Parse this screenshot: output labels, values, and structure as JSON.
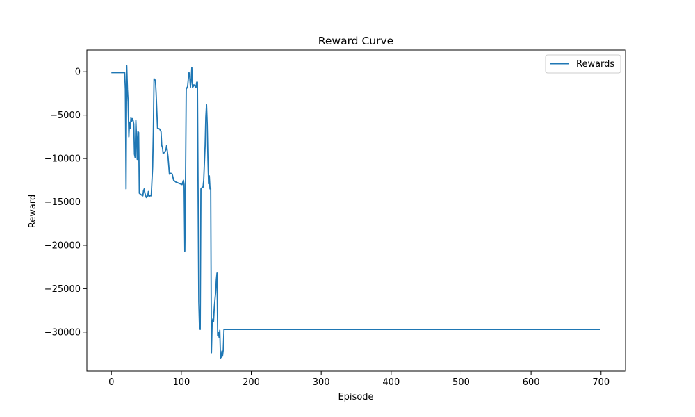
{
  "chart_data": {
    "type": "line",
    "title": "Reward Curve",
    "xlabel": "Episode",
    "ylabel": "Reward",
    "xlim": [
      -35,
      735
    ],
    "ylim": [
      -34500,
      2500
    ],
    "xticks": [
      0,
      100,
      200,
      300,
      400,
      500,
      600,
      700
    ],
    "yticks": [
      0,
      -5000,
      -10000,
      -15000,
      -20000,
      -25000,
      -30000
    ],
    "ytick_labels": [
      "0",
      "−5000",
      "−10000",
      "−15000",
      "−20000",
      "−25000",
      "−30000"
    ],
    "grid": false,
    "legend_position": "top-right",
    "line_color": "#1f77b4",
    "series": [
      {
        "name": "Rewards",
        "points": [
          [
            0,
            -100
          ],
          [
            19,
            -100
          ],
          [
            20,
            -2000
          ],
          [
            21,
            -13500
          ],
          [
            22,
            700
          ],
          [
            23,
            -2000
          ],
          [
            24,
            -3500
          ],
          [
            25,
            -7500
          ],
          [
            26,
            -5800
          ],
          [
            27,
            -6500
          ],
          [
            28,
            -5300
          ],
          [
            29,
            -5700
          ],
          [
            30,
            -5400
          ],
          [
            31,
            -5600
          ],
          [
            32,
            -6000
          ],
          [
            33,
            -9500
          ],
          [
            34,
            -9900
          ],
          [
            35,
            -5600
          ],
          [
            36,
            -7500
          ],
          [
            37,
            -10100
          ],
          [
            38,
            -6900
          ],
          [
            39,
            -7000
          ],
          [
            40,
            -14000
          ],
          [
            43,
            -14200
          ],
          [
            45,
            -14300
          ],
          [
            46,
            -13700
          ],
          [
            47,
            -13500
          ],
          [
            48,
            -14000
          ],
          [
            50,
            -14500
          ],
          [
            52,
            -14300
          ],
          [
            53,
            -13800
          ],
          [
            54,
            -14400
          ],
          [
            55,
            -14300
          ],
          [
            57,
            -14300
          ],
          [
            58,
            -12600
          ],
          [
            59,
            -11000
          ],
          [
            60,
            -7000
          ],
          [
            61,
            -800
          ],
          [
            62,
            -900
          ],
          [
            63,
            -1000
          ],
          [
            64,
            -2500
          ],
          [
            66,
            -6500
          ],
          [
            69,
            -6600
          ],
          [
            71,
            -6900
          ],
          [
            72,
            -8500
          ],
          [
            73,
            -8700
          ],
          [
            74,
            -9400
          ],
          [
            76,
            -9300
          ],
          [
            78,
            -9000
          ],
          [
            79,
            -8500
          ],
          [
            81,
            -9800
          ],
          [
            83,
            -11800
          ],
          [
            85,
            -11700
          ],
          [
            87,
            -11800
          ],
          [
            89,
            -12500
          ],
          [
            92,
            -12700
          ],
          [
            95,
            -12800
          ],
          [
            98,
            -12900
          ],
          [
            101,
            -13000
          ],
          [
            103,
            -12500
          ],
          [
            104,
            -13000
          ],
          [
            105,
            -20700
          ],
          [
            106,
            -12800
          ],
          [
            107,
            -2000
          ],
          [
            109,
            -1700
          ],
          [
            110,
            -800
          ],
          [
            111,
            -100
          ],
          [
            112,
            -500
          ],
          [
            113,
            -1800
          ],
          [
            114,
            -1000
          ],
          [
            115,
            500
          ],
          [
            116,
            -1800
          ],
          [
            117,
            -1700
          ],
          [
            118,
            -1500
          ],
          [
            121,
            -1800
          ],
          [
            122,
            -1200
          ],
          [
            123,
            -1200
          ],
          [
            124,
            -14000
          ],
          [
            125,
            -26500
          ],
          [
            126,
            -29500
          ],
          [
            127,
            -29700
          ],
          [
            128,
            -13500
          ],
          [
            130,
            -13300
          ],
          [
            131,
            -13300
          ],
          [
            132,
            -12500
          ],
          [
            134,
            -8500
          ],
          [
            135,
            -5200
          ],
          [
            136,
            -3800
          ],
          [
            137,
            -6000
          ],
          [
            138,
            -10000
          ],
          [
            139,
            -12900
          ],
          [
            140,
            -12000
          ],
          [
            141,
            -13500
          ],
          [
            142,
            -13400
          ],
          [
            143,
            -32400
          ],
          [
            144,
            -29000
          ],
          [
            145,
            -28500
          ],
          [
            146,
            -28800
          ],
          [
            147,
            -27300
          ],
          [
            148,
            -26300
          ],
          [
            149,
            -25500
          ],
          [
            150,
            -24000
          ],
          [
            151,
            -23200
          ],
          [
            152,
            -30400
          ],
          [
            153,
            -30000
          ],
          [
            154,
            -30600
          ],
          [
            155,
            -29800
          ],
          [
            156,
            -33000
          ],
          [
            157,
            -32900
          ],
          [
            158,
            -32200
          ],
          [
            159,
            -32700
          ],
          [
            160,
            -32000
          ],
          [
            161,
            -29700
          ],
          [
            162,
            -29700
          ],
          [
            699,
            -29700
          ]
        ]
      }
    ]
  }
}
